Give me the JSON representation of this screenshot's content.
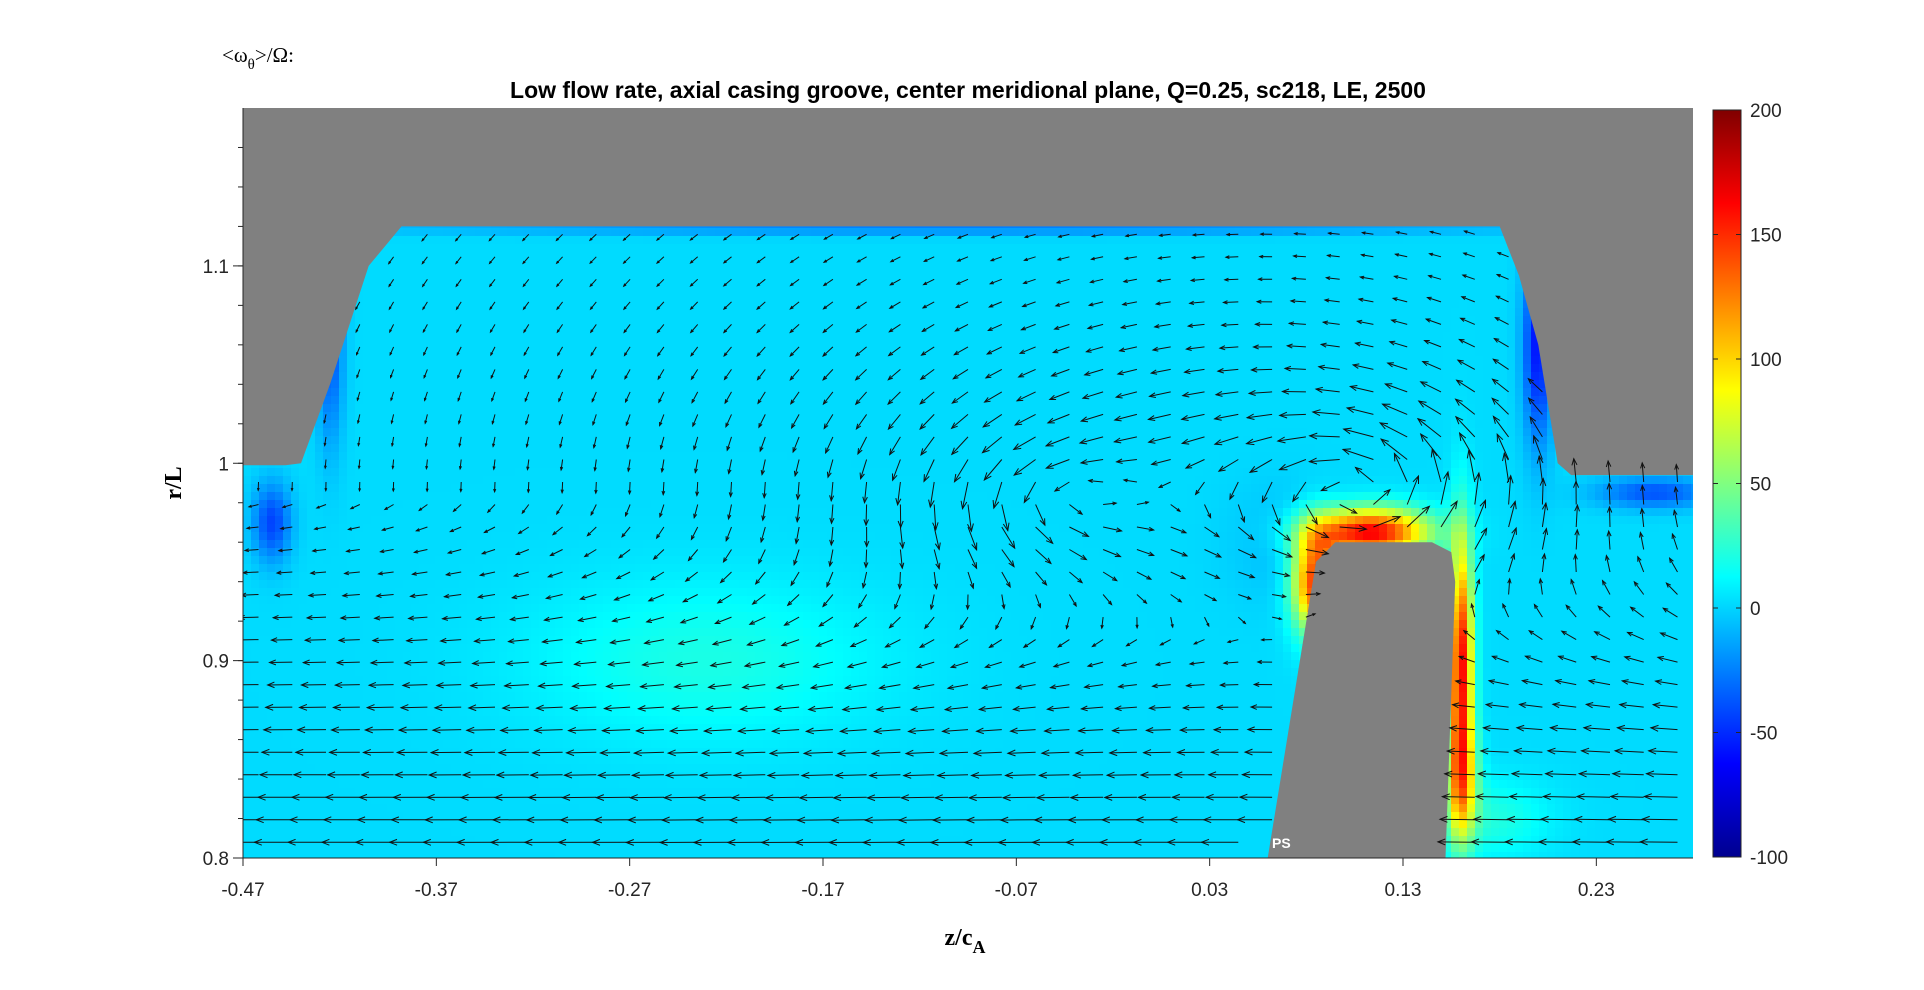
{
  "chart_data": {
    "type": "heatmap",
    "title": "Low flow rate, axial casing groove, center meridional plane, Q=0.25, sc218, LE, 2500",
    "colorbar_label": {
      "prefix": "<ω",
      "subscript": "θ",
      "suffix": ">/Ω:"
    },
    "xlabel": {
      "main": "z/c",
      "subscript": "A"
    },
    "ylabel": "r/L",
    "xlim": [
      -0.47,
      0.28
    ],
    "ylim": [
      0.8,
      1.18
    ],
    "x_ticks": [
      -0.47,
      -0.37,
      -0.27,
      -0.17,
      -0.07,
      0.03,
      0.13,
      0.23
    ],
    "x_tick_labels": [
      "-0.47",
      "-0.37",
      "-0.27",
      "-0.17",
      "-0.07",
      "0.03",
      "0.13",
      "0.23"
    ],
    "y_ticks": [
      0.8,
      0.9,
      1.0,
      1.1
    ],
    "y_tick_labels": [
      "0.8",
      "0.9",
      "1",
      "1.1"
    ],
    "clim": [
      -100,
      200
    ],
    "colorbar_ticks": [
      -100,
      -50,
      0,
      50,
      100,
      150,
      200
    ],
    "colorbar_tick_labels": [
      "-100",
      "-50",
      "0",
      "50",
      "100",
      "150",
      "200"
    ],
    "colormap": "jet",
    "annotation": "PS",
    "colors": {
      "solid": "#808080",
      "background": "#12e6f2",
      "jet": [
        "#00008f",
        "#0000ff",
        "#0080ff",
        "#00ffff",
        "#80ff80",
        "#ffff00",
        "#ff8000",
        "#ff0000",
        "#800000"
      ]
    },
    "casing_wall": [
      [
        -0.47,
        1.18
      ],
      [
        0.28,
        1.18
      ],
      [
        0.28,
        0.994
      ],
      [
        0.217,
        0.994
      ],
      [
        0.21,
        1.0
      ],
      [
        0.2,
        1.06
      ],
      [
        0.19,
        1.095
      ],
      [
        0.18,
        1.12
      ],
      [
        -0.388,
        1.12
      ],
      [
        -0.405,
        1.1
      ],
      [
        -0.425,
        1.04
      ],
      [
        -0.44,
        1.0
      ],
      [
        -0.448,
        0.999
      ],
      [
        -0.47,
        0.999
      ]
    ],
    "blade": [
      [
        0.06,
        0.8
      ],
      [
        0.085,
        0.95
      ],
      [
        0.095,
        0.96
      ],
      [
        0.145,
        0.96
      ],
      [
        0.155,
        0.955
      ],
      [
        0.157,
        0.94
      ],
      [
        0.152,
        0.8
      ]
    ],
    "vorticity_field": {
      "background_level": 2,
      "hotspots": [
        {
          "z": 0.113,
          "r": 0.965,
          "level": 165,
          "rz": 0.03,
          "rr": 0.012
        },
        {
          "z": 0.085,
          "r": 0.94,
          "level": 150,
          "rz": 0.012,
          "rr": 0.025
        },
        {
          "z": 0.16,
          "r": 0.9,
          "level": 160,
          "rz": 0.006,
          "rr": 0.06
        },
        {
          "z": 0.16,
          "r": 0.84,
          "level": 90,
          "rz": 0.008,
          "rr": 0.03
        },
        {
          "z": 0.175,
          "r": 0.82,
          "level": 20,
          "rz": 0.03,
          "rr": 0.02
        },
        {
          "z": -0.23,
          "r": 0.9,
          "level": 18,
          "rz": 0.09,
          "rr": 0.04
        },
        {
          "z": -0.455,
          "r": 0.97,
          "level": -45,
          "rz": 0.01,
          "rr": 0.02
        },
        {
          "z": -0.425,
          "r": 1.06,
          "level": -40,
          "rz": 0.007,
          "rr": 0.05
        },
        {
          "z": 0.2,
          "r": 1.06,
          "level": -60,
          "rz": 0.008,
          "rr": 0.05
        },
        {
          "z": -0.1,
          "r": 1.12,
          "level": -30,
          "rz": 0.3,
          "rr": 0.004
        },
        {
          "z": 0.26,
          "r": 0.985,
          "level": -40,
          "rz": 0.03,
          "rr": 0.008
        },
        {
          "z": 0.07,
          "r": 0.96,
          "level": -10,
          "rz": 0.03,
          "rr": 0.03
        }
      ]
    },
    "vector_field": {
      "columns": 43,
      "rows": 28,
      "main_vortex": {
        "z": -0.05,
        "r": 0.985,
        "strength": 1.0
      },
      "tip_vortex": {
        "z": 0.11,
        "r": 0.985,
        "strength": 1.6
      },
      "inflow_speed": 1.0
    }
  }
}
